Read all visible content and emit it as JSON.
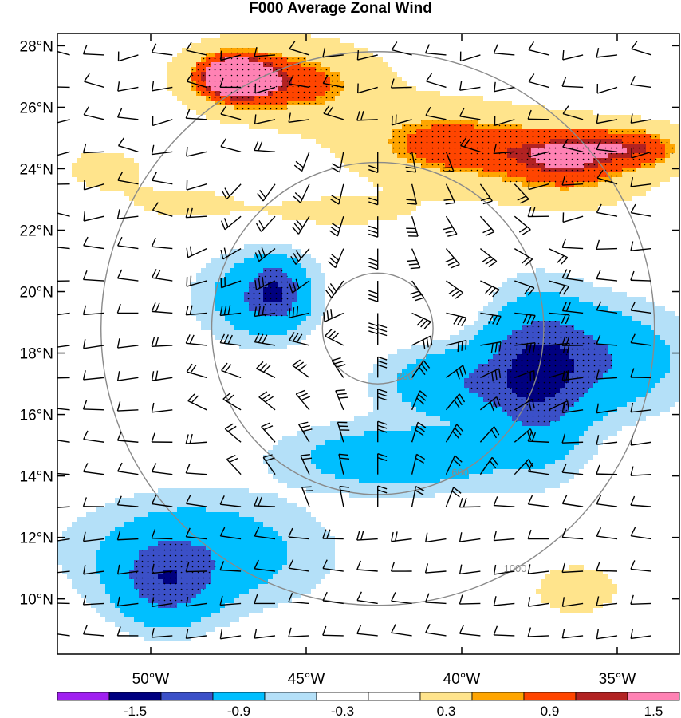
{
  "chart_data": {
    "type": "heatmap",
    "title": "F000 Average Zonal Wind",
    "xlabel": "",
    "ylabel": "",
    "x_range_deg": [
      -53.0,
      -33.0
    ],
    "y_range_deg": [
      8.2,
      28.4
    ],
    "x_ticks": [
      {
        "value": -50,
        "label": "50°W"
      },
      {
        "value": -45,
        "label": "45°W"
      },
      {
        "value": -40,
        "label": "40°W"
      },
      {
        "value": -35,
        "label": "35°W"
      }
    ],
    "y_ticks": [
      {
        "value": 28,
        "label": "28°N"
      },
      {
        "value": 26,
        "label": "26°N"
      },
      {
        "value": 24,
        "label": "24°N"
      },
      {
        "value": 22,
        "label": "22°N"
      },
      {
        "value": 20,
        "label": "20°N"
      },
      {
        "value": 18,
        "label": "18°N"
      },
      {
        "value": 16,
        "label": "16°N"
      },
      {
        "value": 14,
        "label": "14°N"
      },
      {
        "value": 12,
        "label": "12°N"
      },
      {
        "value": 10,
        "label": "10°N"
      }
    ],
    "colorbar": {
      "levels": [
        -1.5,
        -0.9,
        -0.3,
        0.3,
        0.9,
        1.5
      ],
      "level_labels": [
        "-1.5",
        "-0.9",
        "-0.3",
        "0.3",
        "0.9",
        "1.5"
      ],
      "colors": [
        "#a020f0",
        "#000080",
        "#3b50c8",
        "#00bfff",
        "#b4e0f8",
        "#ffffff",
        "#ffffff",
        "#ffe48c",
        "#ffa500",
        "#ff4500",
        "#b22222",
        "#ff82b4"
      ]
    },
    "range_rings": {
      "center": [
        -42.7,
        18.8
      ],
      "radii_km": [
        200,
        600,
        1000
      ],
      "labels": [
        "200",
        "600",
        "1000"
      ],
      "color": "#8a8a8a"
    },
    "stippling": "significant regions (inside |u| >= 0.9)",
    "wind_barbs": "overlay of wind barbs",
    "features": [
      {
        "value": 1.6,
        "center": [
          -47.5,
          27.0
        ],
        "spread": [
          1.4,
          0.9
        ]
      },
      {
        "value": 1.2,
        "center": [
          -45.3,
          26.8
        ],
        "spread": [
          2.6,
          1.3
        ]
      },
      {
        "value": 1.25,
        "center": [
          -40.5,
          24.8
        ],
        "spread": [
          3.0,
          1.3
        ]
      },
      {
        "value": 1.25,
        "center": [
          -36.5,
          24.1
        ],
        "spread": [
          2.5,
          1.2
        ]
      },
      {
        "value": 0.6,
        "center": [
          -35.2,
          24.9
        ],
        "spread": [
          2.3,
          0.7
        ]
      },
      {
        "value": 0.6,
        "center": [
          -33.8,
          24.6
        ],
        "spread": [
          1.3,
          0.7
        ]
      },
      {
        "value": 0.5,
        "center": [
          -51.5,
          24.0
        ],
        "spread": [
          1.5,
          0.8
        ]
      },
      {
        "value": 0.45,
        "center": [
          -49.0,
          22.9
        ],
        "spread": [
          2.0,
          0.6
        ]
      },
      {
        "value": 0.45,
        "center": [
          -44.0,
          22.6
        ],
        "spread": [
          3.0,
          0.6
        ]
      },
      {
        "value": -1.25,
        "center": [
          -37.6,
          17.1
        ],
        "spread": [
          1.5,
          2.2
        ]
      },
      {
        "value": -0.9,
        "center": [
          -36.0,
          17.8
        ],
        "spread": [
          2.6,
          1.5
        ]
      },
      {
        "value": -0.75,
        "center": [
          -40.2,
          17.0
        ],
        "spread": [
          2.0,
          1.0
        ]
      },
      {
        "value": -0.75,
        "center": [
          -42.0,
          14.6
        ],
        "spread": [
          3.0,
          0.9
        ]
      },
      {
        "value": -1.05,
        "center": [
          -46.0,
          20.0
        ],
        "spread": [
          0.8,
          0.9
        ]
      },
      {
        "value": -0.7,
        "center": [
          -46.5,
          19.8
        ],
        "spread": [
          1.6,
          1.2
        ]
      },
      {
        "value": -1.1,
        "center": [
          -49.5,
          10.5
        ],
        "spread": [
          1.4,
          1.2
        ]
      },
      {
        "value": -0.7,
        "center": [
          -48.5,
          11.5
        ],
        "spread": [
          3.2,
          1.5
        ]
      },
      {
        "value": 0.6,
        "center": [
          -36.3,
          10.3
        ],
        "spread": [
          1.5,
          0.9
        ]
      },
      {
        "value": 0.25,
        "center": [
          -41.5,
          19.6
        ],
        "spread": [
          2.0,
          0.9
        ]
      }
    ]
  }
}
